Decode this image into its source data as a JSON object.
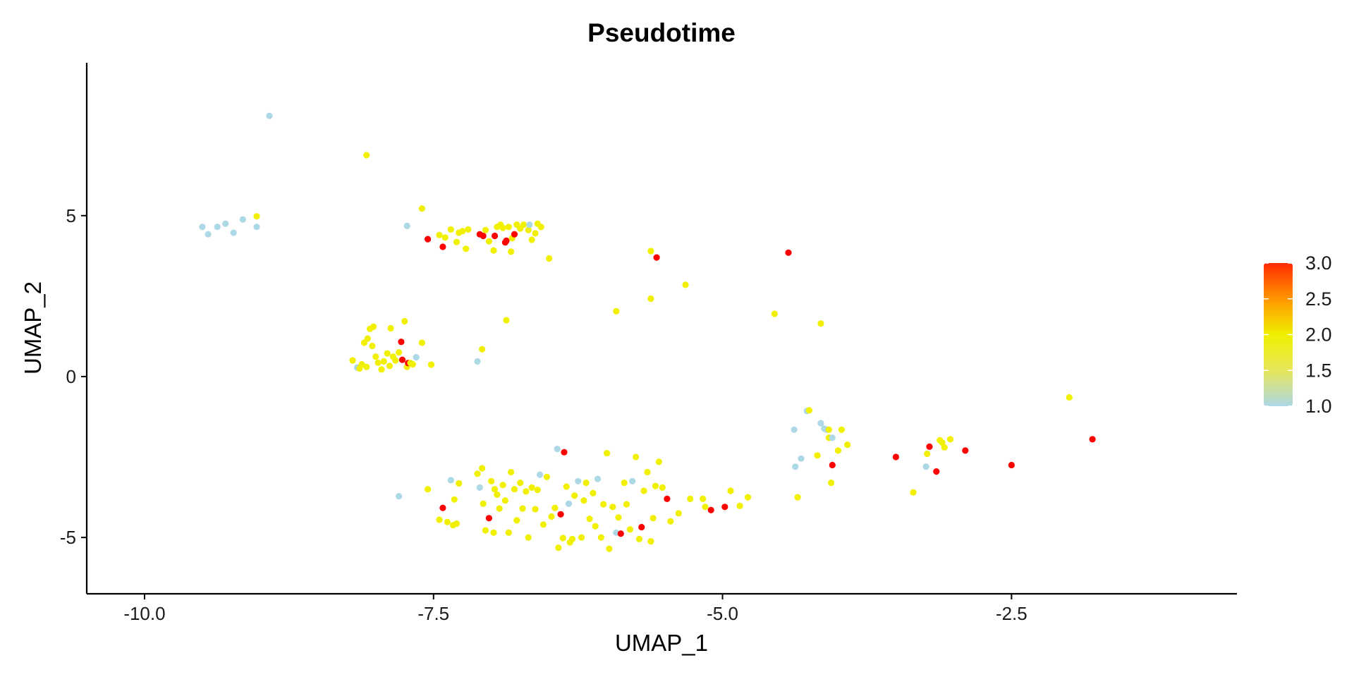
{
  "chart_data": {
    "type": "scatter",
    "title": "Pseudotime",
    "xlabel": "UMAP_1",
    "ylabel": "UMAP_2",
    "xlim": [
      -10.5,
      -0.55
    ],
    "ylim": [
      -6.75,
      9.75
    ],
    "x_ticks": [
      {
        "value": -10.0,
        "label": "-10.0"
      },
      {
        "value": -7.5,
        "label": "-7.5"
      },
      {
        "value": -5.0,
        "label": "-5.0"
      },
      {
        "value": -2.5,
        "label": "-2.5"
      }
    ],
    "y_ticks": [
      {
        "value": -5,
        "label": "-5"
      },
      {
        "value": 0,
        "label": "0"
      },
      {
        "value": 5,
        "label": "5"
      }
    ],
    "grid": false,
    "legend": {
      "position": "right",
      "min": 1.0,
      "max": 3.0,
      "ticks": [
        {
          "value": 1.0,
          "label": "1.0"
        },
        {
          "value": 1.5,
          "label": "1.5"
        },
        {
          "value": 2.0,
          "label": "2.0"
        },
        {
          "value": 2.5,
          "label": "2.5"
        },
        {
          "value": 3.0,
          "label": "3.0"
        }
      ],
      "colors": [
        "#ADD8E6",
        "#E6E65A",
        "#F0F000",
        "#FF9600",
        "#FF2A00"
      ]
    },
    "points": [
      {
        "x": -8.92,
        "y": 8.1,
        "c": 1
      },
      {
        "x": -9.5,
        "y": 4.65,
        "c": 1
      },
      {
        "x": -9.45,
        "y": 4.42,
        "c": 1
      },
      {
        "x": -9.37,
        "y": 4.65,
        "c": 1
      },
      {
        "x": -9.3,
        "y": 4.75,
        "c": 1
      },
      {
        "x": -9.23,
        "y": 4.47,
        "c": 1
      },
      {
        "x": -9.15,
        "y": 4.88,
        "c": 1
      },
      {
        "x": -9.03,
        "y": 4.65,
        "c": 1
      },
      {
        "x": -9.03,
        "y": 4.98,
        "c": 2
      },
      {
        "x": -7.73,
        "y": 4.68,
        "c": 1
      },
      {
        "x": -8.08,
        "y": 6.88,
        "c": 2
      },
      {
        "x": -7.6,
        "y": 5.22,
        "c": 2
      },
      {
        "x": -7.55,
        "y": 4.27,
        "c": 3
      },
      {
        "x": -7.42,
        "y": 4.03,
        "c": 3
      },
      {
        "x": -7.45,
        "y": 4.4,
        "c": 2
      },
      {
        "x": -7.4,
        "y": 4.32,
        "c": 2
      },
      {
        "x": -7.35,
        "y": 4.57,
        "c": 2
      },
      {
        "x": -7.3,
        "y": 4.18,
        "c": 2
      },
      {
        "x": -7.28,
        "y": 4.47,
        "c": 2
      },
      {
        "x": -7.25,
        "y": 4.52,
        "c": 2
      },
      {
        "x": -7.22,
        "y": 3.97,
        "c": 2
      },
      {
        "x": -7.2,
        "y": 4.57,
        "c": 2
      },
      {
        "x": -7.1,
        "y": 4.42,
        "c": 3
      },
      {
        "x": -7.07,
        "y": 4.37,
        "c": 3
      },
      {
        "x": -7.05,
        "y": 4.55,
        "c": 2
      },
      {
        "x": -7.02,
        "y": 4.2,
        "c": 2
      },
      {
        "x": -6.98,
        "y": 3.92,
        "c": 2
      },
      {
        "x": -6.97,
        "y": 4.37,
        "c": 3
      },
      {
        "x": -6.95,
        "y": 4.65,
        "c": 2
      },
      {
        "x": -6.92,
        "y": 4.72,
        "c": 2
      },
      {
        "x": -6.9,
        "y": 4.62,
        "c": 2
      },
      {
        "x": -6.88,
        "y": 4.17,
        "c": 3
      },
      {
        "x": -6.87,
        "y": 4.22,
        "c": 3
      },
      {
        "x": -6.85,
        "y": 4.65,
        "c": 2
      },
      {
        "x": -6.83,
        "y": 3.88,
        "c": 2
      },
      {
        "x": -6.82,
        "y": 4.3,
        "c": 2
      },
      {
        "x": -6.8,
        "y": 4.42,
        "c": 3
      },
      {
        "x": -6.78,
        "y": 4.72,
        "c": 2
      },
      {
        "x": -6.75,
        "y": 4.6,
        "c": 2
      },
      {
        "x": -6.72,
        "y": 4.72,
        "c": 2
      },
      {
        "x": -6.68,
        "y": 4.55,
        "c": 2
      },
      {
        "x": -6.67,
        "y": 4.72,
        "c": 1
      },
      {
        "x": -6.65,
        "y": 4.25,
        "c": 2
      },
      {
        "x": -6.62,
        "y": 4.45,
        "c": 2
      },
      {
        "x": -6.6,
        "y": 4.75,
        "c": 2
      },
      {
        "x": -6.57,
        "y": 4.65,
        "c": 2
      },
      {
        "x": -6.5,
        "y": 3.67,
        "c": 2
      },
      {
        "x": -5.62,
        "y": 3.9,
        "c": 2
      },
      {
        "x": -5.57,
        "y": 3.7,
        "c": 3
      },
      {
        "x": -5.62,
        "y": 2.42,
        "c": 2
      },
      {
        "x": -5.32,
        "y": 2.85,
        "c": 2
      },
      {
        "x": -5.92,
        "y": 2.03,
        "c": 2
      },
      {
        "x": -6.87,
        "y": 1.75,
        "c": 2
      },
      {
        "x": -7.08,
        "y": 0.85,
        "c": 2
      },
      {
        "x": -7.12,
        "y": 0.47,
        "c": 1
      },
      {
        "x": -4.43,
        "y": 3.85,
        "c": 3
      },
      {
        "x": -4.55,
        "y": 1.95,
        "c": 2
      },
      {
        "x": -4.15,
        "y": 1.65,
        "c": 2
      },
      {
        "x": -8.2,
        "y": 0.5,
        "c": 2
      },
      {
        "x": -8.16,
        "y": 0.28,
        "c": 1
      },
      {
        "x": -8.14,
        "y": 0.25,
        "c": 2
      },
      {
        "x": -8.12,
        "y": 0.38,
        "c": 2
      },
      {
        "x": -8.1,
        "y": 1.05,
        "c": 2
      },
      {
        "x": -8.08,
        "y": 0.3,
        "c": 2
      },
      {
        "x": -8.07,
        "y": 1.18,
        "c": 2
      },
      {
        "x": -8.05,
        "y": 1.48,
        "c": 2
      },
      {
        "x": -8.03,
        "y": 0.95,
        "c": 2
      },
      {
        "x": -8.02,
        "y": 1.55,
        "c": 2
      },
      {
        "x": -8.0,
        "y": 0.62,
        "c": 2
      },
      {
        "x": -7.98,
        "y": 0.43,
        "c": 2
      },
      {
        "x": -7.95,
        "y": 0.22,
        "c": 2
      },
      {
        "x": -7.93,
        "y": 0.47,
        "c": 2
      },
      {
        "x": -7.9,
        "y": 0.72,
        "c": 2
      },
      {
        "x": -7.88,
        "y": 0.33,
        "c": 2
      },
      {
        "x": -7.87,
        "y": 1.5,
        "c": 2
      },
      {
        "x": -7.85,
        "y": 0.62,
        "c": 2
      },
      {
        "x": -7.83,
        "y": 0.5,
        "c": 2
      },
      {
        "x": -7.8,
        "y": 0.75,
        "c": 2
      },
      {
        "x": -7.78,
        "y": 1.08,
        "c": 3
      },
      {
        "x": -7.77,
        "y": 0.52,
        "c": 3
      },
      {
        "x": -7.75,
        "y": 1.72,
        "c": 2
      },
      {
        "x": -7.73,
        "y": 0.3,
        "c": 2
      },
      {
        "x": -7.72,
        "y": 0.42,
        "c": 3
      },
      {
        "x": -7.7,
        "y": 0.42,
        "c": 2
      },
      {
        "x": -7.68,
        "y": 0.38,
        "c": 2
      },
      {
        "x": -7.65,
        "y": 0.6,
        "c": 1
      },
      {
        "x": -7.6,
        "y": 1.05,
        "c": 2
      },
      {
        "x": -7.52,
        "y": 0.37,
        "c": 2
      },
      {
        "x": -7.8,
        "y": -3.72,
        "c": 1
      },
      {
        "x": -7.55,
        "y": -3.5,
        "c": 2
      },
      {
        "x": -7.45,
        "y": -4.45,
        "c": 2
      },
      {
        "x": -7.42,
        "y": -4.08,
        "c": 3
      },
      {
        "x": -7.38,
        "y": -4.52,
        "c": 2
      },
      {
        "x": -7.35,
        "y": -3.22,
        "c": 1
      },
      {
        "x": -7.33,
        "y": -4.62,
        "c": 2
      },
      {
        "x": -7.32,
        "y": -3.82,
        "c": 2
      },
      {
        "x": -7.3,
        "y": -4.57,
        "c": 2
      },
      {
        "x": -7.28,
        "y": -3.32,
        "c": 2
      },
      {
        "x": -7.12,
        "y": -3.02,
        "c": 2
      },
      {
        "x": -7.1,
        "y": -3.45,
        "c": 1
      },
      {
        "x": -7.08,
        "y": -2.85,
        "c": 2
      },
      {
        "x": -7.07,
        "y": -3.95,
        "c": 2
      },
      {
        "x": -7.05,
        "y": -4.78,
        "c": 2
      },
      {
        "x": -7.02,
        "y": -4.4,
        "c": 3
      },
      {
        "x": -7.0,
        "y": -3.25,
        "c": 2
      },
      {
        "x": -6.98,
        "y": -4.85,
        "c": 2
      },
      {
        "x": -6.97,
        "y": -3.5,
        "c": 2
      },
      {
        "x": -6.95,
        "y": -3.67,
        "c": 2
      },
      {
        "x": -6.93,
        "y": -4.1,
        "c": 2
      },
      {
        "x": -6.9,
        "y": -3.37,
        "c": 2
      },
      {
        "x": -6.88,
        "y": -3.85,
        "c": 2
      },
      {
        "x": -6.85,
        "y": -4.85,
        "c": 2
      },
      {
        "x": -6.83,
        "y": -2.97,
        "c": 2
      },
      {
        "x": -6.8,
        "y": -3.5,
        "c": 2
      },
      {
        "x": -6.78,
        "y": -4.47,
        "c": 2
      },
      {
        "x": -6.75,
        "y": -3.3,
        "c": 2
      },
      {
        "x": -6.73,
        "y": -4.1,
        "c": 2
      },
      {
        "x": -6.7,
        "y": -3.57,
        "c": 2
      },
      {
        "x": -6.68,
        "y": -5.0,
        "c": 2
      },
      {
        "x": -6.65,
        "y": -3.45,
        "c": 2
      },
      {
        "x": -6.62,
        "y": -4.12,
        "c": 2
      },
      {
        "x": -6.6,
        "y": -3.52,
        "c": 2
      },
      {
        "x": -6.58,
        "y": -3.05,
        "c": 1
      },
      {
        "x": -6.55,
        "y": -4.6,
        "c": 2
      },
      {
        "x": -6.52,
        "y": -3.12,
        "c": 2
      },
      {
        "x": -6.48,
        "y": -4.35,
        "c": 2
      },
      {
        "x": -6.45,
        "y": -4.08,
        "c": 2
      },
      {
        "x": -6.43,
        "y": -2.25,
        "c": 1
      },
      {
        "x": -6.42,
        "y": -5.32,
        "c": 2
      },
      {
        "x": -6.4,
        "y": -4.28,
        "c": 3
      },
      {
        "x": -6.38,
        "y": -5.02,
        "c": 2
      },
      {
        "x": -6.37,
        "y": -2.35,
        "c": 3
      },
      {
        "x": -6.35,
        "y": -3.42,
        "c": 2
      },
      {
        "x": -6.33,
        "y": -3.95,
        "c": 1
      },
      {
        "x": -6.32,
        "y": -5.15,
        "c": 2
      },
      {
        "x": -6.3,
        "y": -5.05,
        "c": 2
      },
      {
        "x": -6.28,
        "y": -3.7,
        "c": 2
      },
      {
        "x": -6.25,
        "y": -3.25,
        "c": 1
      },
      {
        "x": -6.22,
        "y": -5.0,
        "c": 2
      },
      {
        "x": -6.2,
        "y": -3.85,
        "c": 2
      },
      {
        "x": -6.18,
        "y": -3.3,
        "c": 2
      },
      {
        "x": -6.15,
        "y": -4.42,
        "c": 2
      },
      {
        "x": -6.12,
        "y": -3.62,
        "c": 2
      },
      {
        "x": -6.1,
        "y": -4.65,
        "c": 2
      },
      {
        "x": -6.08,
        "y": -3.18,
        "c": 1
      },
      {
        "x": -6.05,
        "y": -5.0,
        "c": 2
      },
      {
        "x": -6.03,
        "y": -3.97,
        "c": 2
      },
      {
        "x": -6.0,
        "y": -2.38,
        "c": 2
      },
      {
        "x": -5.98,
        "y": -5.35,
        "c": 2
      },
      {
        "x": -5.95,
        "y": -4.05,
        "c": 2
      },
      {
        "x": -5.92,
        "y": -4.85,
        "c": 1
      },
      {
        "x": -5.9,
        "y": -4.38,
        "c": 2
      },
      {
        "x": -5.88,
        "y": -4.88,
        "c": 3
      },
      {
        "x": -5.85,
        "y": -3.3,
        "c": 2
      },
      {
        "x": -5.83,
        "y": -3.97,
        "c": 2
      },
      {
        "x": -5.8,
        "y": -4.75,
        "c": 2
      },
      {
        "x": -5.78,
        "y": -3.25,
        "c": 1
      },
      {
        "x": -5.75,
        "y": -2.5,
        "c": 2
      },
      {
        "x": -5.72,
        "y": -5.05,
        "c": 2
      },
      {
        "x": -5.7,
        "y": -4.68,
        "c": 3
      },
      {
        "x": -5.68,
        "y": -3.55,
        "c": 2
      },
      {
        "x": -5.65,
        "y": -2.97,
        "c": 2
      },
      {
        "x": -5.62,
        "y": -5.12,
        "c": 2
      },
      {
        "x": -5.6,
        "y": -4.4,
        "c": 2
      },
      {
        "x": -5.58,
        "y": -3.4,
        "c": 2
      },
      {
        "x": -5.55,
        "y": -2.65,
        "c": 2
      },
      {
        "x": -5.52,
        "y": -3.45,
        "c": 2
      },
      {
        "x": -5.48,
        "y": -3.8,
        "c": 3
      },
      {
        "x": -5.45,
        "y": -4.5,
        "c": 2
      },
      {
        "x": -5.38,
        "y": -4.25,
        "c": 2
      },
      {
        "x": -5.28,
        "y": -3.8,
        "c": 2
      },
      {
        "x": -5.17,
        "y": -3.8,
        "c": 2
      },
      {
        "x": -5.15,
        "y": -4.05,
        "c": 2
      },
      {
        "x": -5.1,
        "y": -4.15,
        "c": 3
      },
      {
        "x": -4.98,
        "y": -4.05,
        "c": 3
      },
      {
        "x": -4.93,
        "y": -3.55,
        "c": 2
      },
      {
        "x": -4.85,
        "y": -4.02,
        "c": 2
      },
      {
        "x": -4.78,
        "y": -3.75,
        "c": 2
      },
      {
        "x": -4.35,
        "y": -3.75,
        "c": 2
      },
      {
        "x": -4.27,
        "y": -1.07,
        "c": 1
      },
      {
        "x": -4.25,
        "y": -1.05,
        "c": 2
      },
      {
        "x": -4.38,
        "y": -1.65,
        "c": 1
      },
      {
        "x": -4.37,
        "y": -2.8,
        "c": 1
      },
      {
        "x": -4.32,
        "y": -2.55,
        "c": 1
      },
      {
        "x": -4.18,
        "y": -2.45,
        "c": 2
      },
      {
        "x": -4.15,
        "y": -1.45,
        "c": 1
      },
      {
        "x": -4.12,
        "y": -1.62,
        "c": 1
      },
      {
        "x": -4.1,
        "y": -1.65,
        "c": 1
      },
      {
        "x": -4.08,
        "y": -1.65,
        "c": 2
      },
      {
        "x": -4.08,
        "y": -1.9,
        "c": 2
      },
      {
        "x": -4.05,
        "y": -1.9,
        "c": 1
      },
      {
        "x": -4.06,
        "y": -3.3,
        "c": 2
      },
      {
        "x": -4.05,
        "y": -2.75,
        "c": 3
      },
      {
        "x": -4.0,
        "y": -2.3,
        "c": 2
      },
      {
        "x": -3.97,
        "y": -1.65,
        "c": 2
      },
      {
        "x": -3.92,
        "y": -2.12,
        "c": 2
      },
      {
        "x": -3.5,
        "y": -2.5,
        "c": 3
      },
      {
        "x": -3.35,
        "y": -3.6,
        "c": 2
      },
      {
        "x": -3.24,
        "y": -2.8,
        "c": 1
      },
      {
        "x": -3.23,
        "y": -2.4,
        "c": 2
      },
      {
        "x": -3.21,
        "y": -2.18,
        "c": 3
      },
      {
        "x": -3.15,
        "y": -2.95,
        "c": 3
      },
      {
        "x": -3.12,
        "y": -1.98,
        "c": 2
      },
      {
        "x": -3.1,
        "y": -2.05,
        "c": 2
      },
      {
        "x": -3.08,
        "y": -2.2,
        "c": 2
      },
      {
        "x": -3.03,
        "y": -1.95,
        "c": 2
      },
      {
        "x": -2.9,
        "y": -2.3,
        "c": 3
      },
      {
        "x": -2.5,
        "y": -2.75,
        "c": 3
      },
      {
        "x": -2.0,
        "y": -0.65,
        "c": 2
      },
      {
        "x": -1.8,
        "y": -1.95,
        "c": 3
      }
    ]
  }
}
